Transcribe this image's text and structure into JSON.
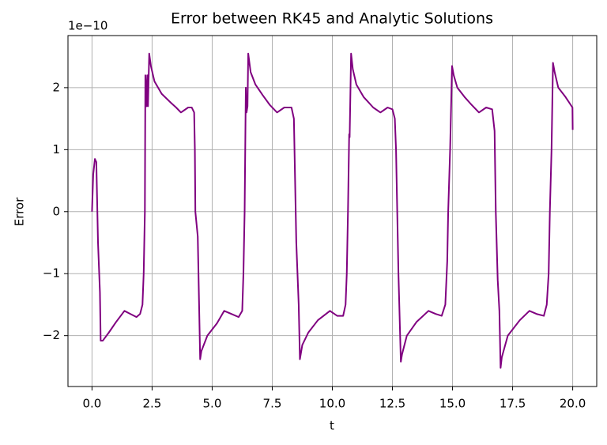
{
  "chart_data": {
    "type": "line",
    "title": "Error between RK45 and Analytic Solutions",
    "x_label": "t",
    "y_label": "Error",
    "y_offset_label": "1e−10",
    "xlim": [
      -1.0,
      21.0
    ],
    "ylim": [
      -2.82,
      2.84
    ],
    "xticks": [
      {
        "value": 0,
        "label": "0.0"
      },
      2.5,
      {
        "value": 5,
        "label": "5.0"
      },
      7.5,
      {
        "value": 10,
        "label": "10.0"
      },
      12.5,
      {
        "value": 15,
        "label": "15.0"
      },
      17.5,
      {
        "value": 20,
        "label": "20.0"
      }
    ],
    "yticks": [
      {
        "value": -2,
        "label": "−2"
      },
      {
        "value": -1,
        "label": "−1"
      },
      0,
      1,
      2
    ],
    "grid": true,
    "series": [
      {
        "color": "#800080",
        "x": [
          0,
          0.05,
          0.12,
          0.18,
          0.25,
          0.33,
          0.36,
          0.45,
          0.7,
          1.0,
          1.35,
          1.6,
          1.85,
          2.0,
          2.1,
          2.15,
          2.2,
          2.22,
          2.27,
          2.3,
          2.33,
          2.38,
          2.45,
          2.6,
          2.9,
          3.3,
          3.5,
          3.7,
          4.0,
          4.15,
          4.25,
          4.28,
          4.3,
          4.4,
          4.5,
          4.55,
          4.8,
          5.2,
          5.5,
          5.8,
          6.1,
          6.25,
          6.3,
          6.35,
          6.4,
          6.43,
          6.47,
          6.5,
          6.6,
          6.8,
          7.1,
          7.4,
          7.7,
          8.0,
          8.3,
          8.4,
          8.45,
          8.5,
          8.6,
          8.65,
          8.75,
          9.0,
          9.4,
          9.9,
          10.2,
          10.45,
          10.55,
          10.6,
          10.65,
          10.7,
          10.72,
          10.78,
          10.85,
          11.0,
          11.3,
          11.7,
          12.0,
          12.3,
          12.5,
          12.6,
          12.65,
          12.7,
          12.75,
          12.85,
          12.9,
          13.1,
          13.5,
          14.0,
          14.3,
          14.55,
          14.7,
          14.78,
          14.82,
          14.9,
          14.98,
          15.05,
          15.2,
          15.5,
          15.8,
          16.1,
          16.4,
          16.65,
          16.75,
          16.8,
          16.88,
          16.95,
          17.0,
          17.05,
          17.3,
          17.8,
          18.2,
          18.5,
          18.8,
          18.92,
          19.0,
          19.05,
          19.12,
          19.18,
          19.25,
          19.4,
          19.7,
          19.99,
          20.0
        ],
        "values": [
          0,
          0.6,
          0.85,
          0.8,
          -0.5,
          -1.3,
          -2.08,
          -2.08,
          -1.95,
          -1.78,
          -1.6,
          -1.65,
          -1.7,
          -1.65,
          -1.5,
          -1.0,
          0,
          2.2,
          1.7,
          2.2,
          1.7,
          2.55,
          2.35,
          2.1,
          1.9,
          1.75,
          1.68,
          1.6,
          1.68,
          1.68,
          1.6,
          1.0,
          0,
          -0.4,
          -2.38,
          -2.25,
          -2.0,
          -1.8,
          -1.6,
          -1.65,
          -1.7,
          -1.6,
          -1.0,
          0,
          2.0,
          1.6,
          1.7,
          2.55,
          2.25,
          2.05,
          1.88,
          1.72,
          1.6,
          1.68,
          1.68,
          1.5,
          0.5,
          -0.5,
          -1.5,
          -2.38,
          -2.15,
          -1.95,
          -1.75,
          -1.6,
          -1.68,
          -1.68,
          -1.5,
          -1.0,
          0,
          1.25,
          1.2,
          2.55,
          2.3,
          2.05,
          1.85,
          1.68,
          1.6,
          1.68,
          1.65,
          1.5,
          1.0,
          0,
          -1.0,
          -2.42,
          -2.3,
          -2.0,
          -1.78,
          -1.6,
          -1.65,
          -1.68,
          -1.5,
          -0.8,
          0,
          1.0,
          2.35,
          2.2,
          2.0,
          1.85,
          1.72,
          1.6,
          1.68,
          1.65,
          1.3,
          0,
          -1.1,
          -1.6,
          -2.52,
          -2.35,
          -2.0,
          -1.75,
          -1.6,
          -1.65,
          -1.68,
          -1.5,
          -1.0,
          0,
          1.0,
          2.4,
          2.25,
          2.0,
          1.85,
          1.68,
          1.32
        ]
      }
    ]
  }
}
